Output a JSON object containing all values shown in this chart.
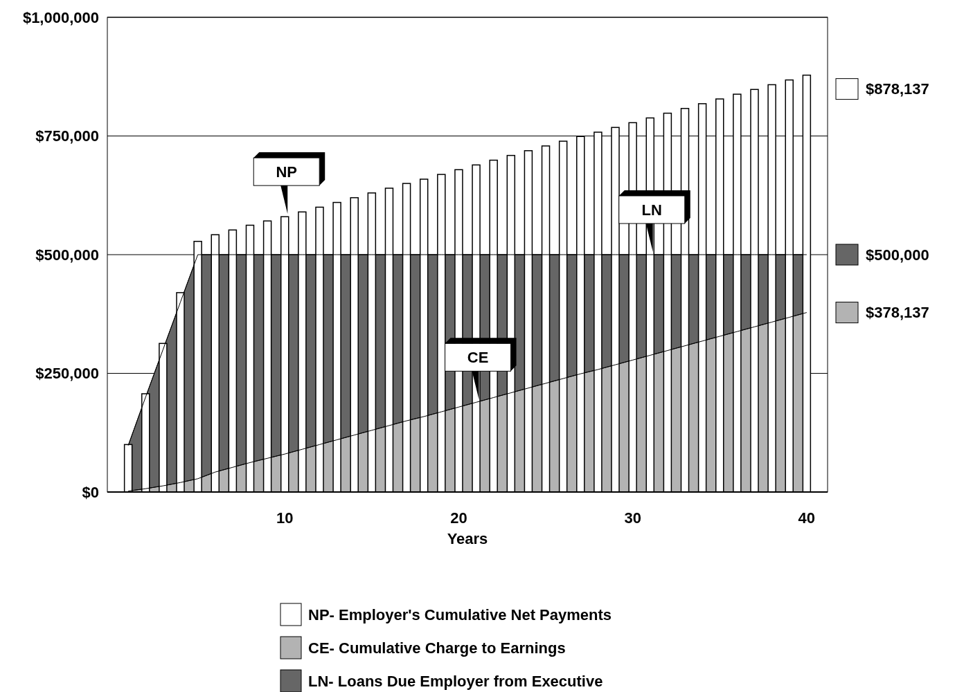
{
  "chart_data": {
    "type": "bar",
    "x": [
      1,
      2,
      3,
      4,
      5,
      6,
      7,
      8,
      9,
      10,
      11,
      12,
      13,
      14,
      15,
      16,
      17,
      18,
      19,
      20,
      21,
      22,
      23,
      24,
      25,
      26,
      27,
      28,
      29,
      30,
      31,
      32,
      33,
      34,
      35,
      36,
      37,
      38,
      39,
      40
    ],
    "xlabel": "Years",
    "series": [
      {
        "name": "NP- Employer's Cumulative Net Payments",
        "color": "#ffffff",
        "values": [
          100000,
          207000,
          313000,
          420000,
          528000,
          542000,
          552000,
          562000,
          571000,
          580000,
          590000,
          600000,
          610000,
          620000,
          630000,
          640000,
          650000,
          659000,
          669000,
          679000,
          689000,
          699000,
          709000,
          719000,
          729000,
          739000,
          749000,
          758000,
          768000,
          778000,
          788000,
          798000,
          808000,
          818000,
          828000,
          838000,
          848000,
          858000,
          868000,
          878137
        ]
      },
      {
        "name": "CE- Cumulative Charge to Earnings",
        "type": "area",
        "color": "#b3b3b3",
        "values": [
          2000,
          7000,
          13000,
          20000,
          28000,
          42000,
          52000,
          62000,
          71000,
          80000,
          90000,
          100000,
          110000,
          120000,
          130000,
          140000,
          150000,
          159000,
          169000,
          179000,
          189000,
          199000,
          209000,
          219000,
          229000,
          239000,
          249000,
          258000,
          268000,
          278000,
          288000,
          298000,
          308000,
          318000,
          328000,
          338000,
          348000,
          358000,
          368000,
          378137
        ]
      },
      {
        "name": "LN- Loans Due Employer from Executive",
        "type": "area",
        "color": "#666666",
        "values": [
          98000,
          200000,
          300000,
          400000,
          500000,
          500000,
          500000,
          500000,
          500000,
          500000,
          500000,
          500000,
          500000,
          500000,
          500000,
          500000,
          500000,
          500000,
          500000,
          500000,
          500000,
          500000,
          500000,
          500000,
          500000,
          500000,
          500000,
          500000,
          500000,
          500000,
          500000,
          500000,
          500000,
          500000,
          500000,
          500000,
          500000,
          500000,
          500000,
          500000
        ]
      }
    ],
    "xlim": [
      -0.2,
      41.2
    ],
    "xticks": [
      10,
      20,
      30,
      40
    ],
    "ylim": [
      0,
      1000000
    ],
    "yticks": [
      {
        "value": 0,
        "label": "$0"
      },
      {
        "value": 250000,
        "label": "$250,000"
      },
      {
        "value": 500000,
        "label": "$500,000"
      },
      {
        "value": 750000,
        "label": "$750,000"
      },
      {
        "value": 1000000,
        "label": "$1,000,000"
      }
    ],
    "grid": "y",
    "legend": "bottom",
    "annotations": [
      {
        "text": "NP",
        "x": 10,
        "y": 580000
      },
      {
        "text": "CE",
        "x": 21,
        "y": 189000
      },
      {
        "text": "LN",
        "x": 31,
        "y": 500000
      },
      "$878,137",
      "$500,000",
      "$378,137"
    ]
  }
}
